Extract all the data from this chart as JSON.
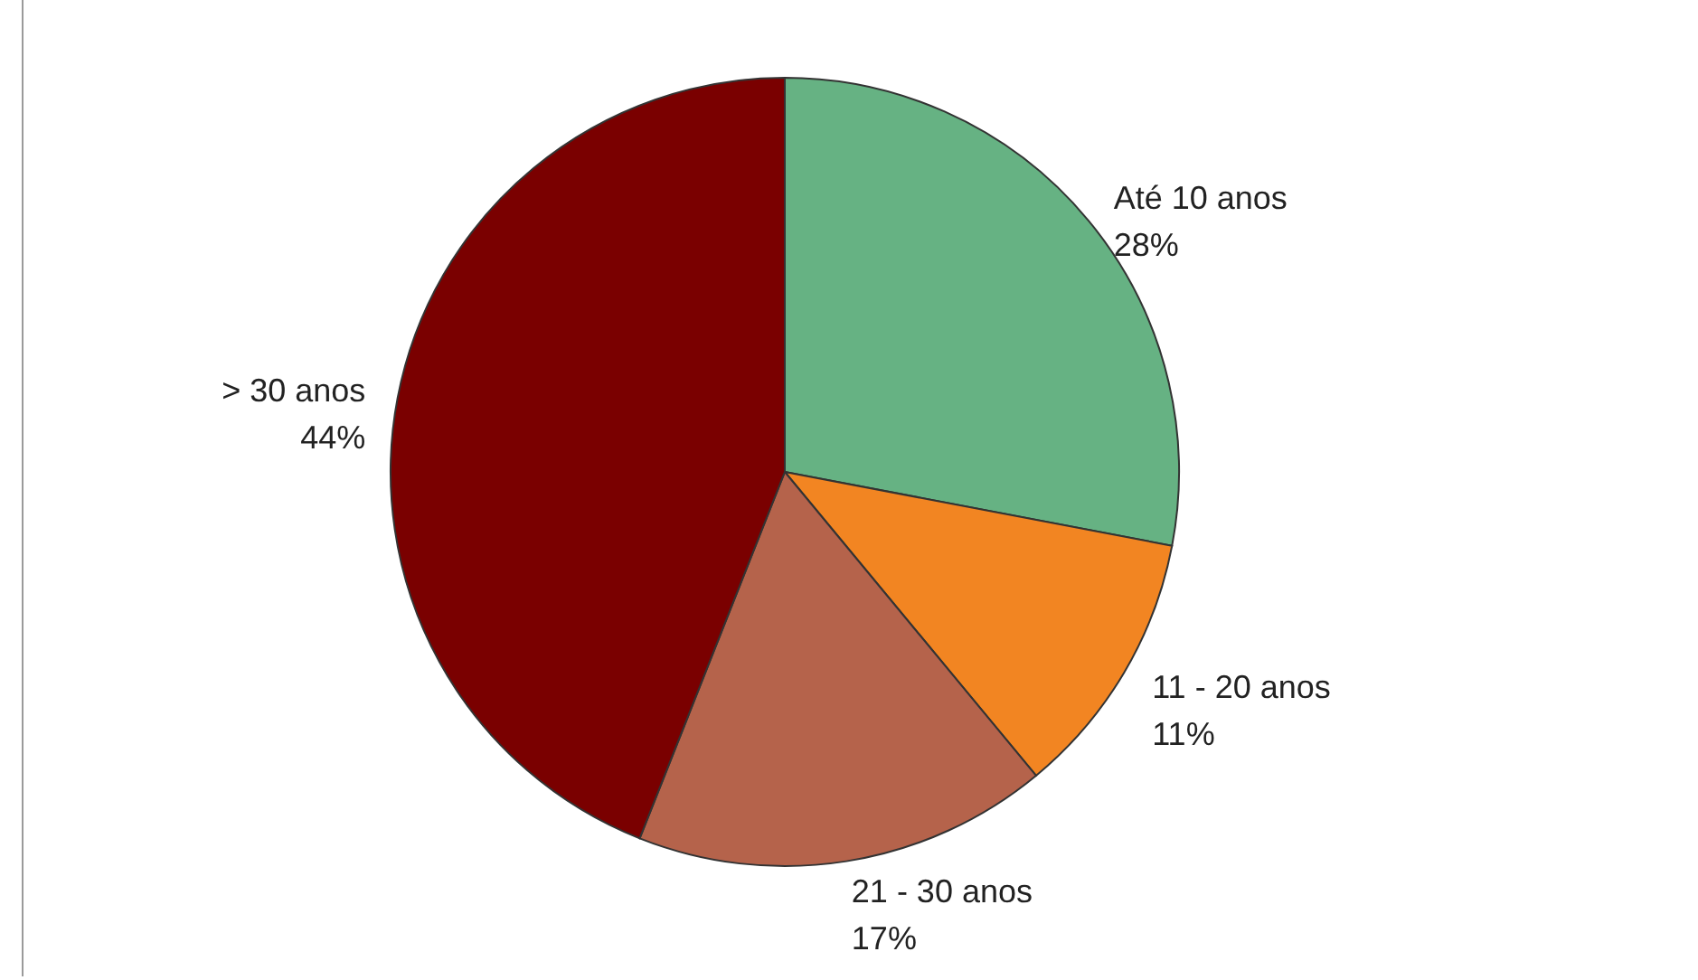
{
  "chart_data": {
    "type": "pie",
    "categories": [
      "Até 10 anos",
      "11 - 20 anos",
      "21 - 30 anos",
      "> 30 anos"
    ],
    "values": [
      28,
      11,
      17,
      44
    ],
    "value_labels": [
      "28%",
      "11%",
      "17%",
      "44%"
    ],
    "colors": [
      "#66b283",
      "#f28522",
      "#b5634b",
      "#7a0000"
    ]
  }
}
